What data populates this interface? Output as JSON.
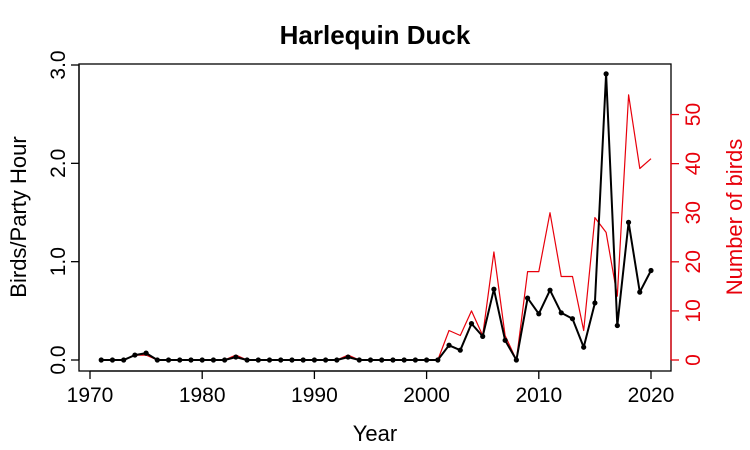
{
  "chart_data": {
    "type": "line",
    "title": "Harlequin Duck",
    "xlabel": "Year",
    "ylabel": "Birds/Party Hour",
    "ylabel_right": "Number of birds",
    "xlim": [
      1970,
      2020
    ],
    "ylim": [
      0,
      3.0
    ],
    "ylim_right": [
      0,
      55
    ],
    "x_ticks": [
      1970,
      1980,
      1990,
      2000,
      2010,
      2020
    ],
    "y_ticks": [
      "0.0",
      "1.0",
      "2.0",
      "3.0"
    ],
    "y_ticks_right": [
      "0",
      "10",
      "20",
      "30",
      "40",
      "50"
    ],
    "grid": false,
    "colors": {
      "left_series": "#000000",
      "right_series": "#e8000b"
    },
    "x": [
      1971,
      1972,
      1973,
      1974,
      1975,
      1976,
      1977,
      1978,
      1979,
      1980,
      1981,
      1982,
      1983,
      1984,
      1985,
      1986,
      1987,
      1988,
      1989,
      1990,
      1991,
      1992,
      1993,
      1994,
      1995,
      1996,
      1997,
      1998,
      1999,
      2000,
      2001,
      2002,
      2003,
      2004,
      2005,
      2006,
      2007,
      2008,
      2009,
      2010,
      2011,
      2012,
      2013,
      2014,
      2015,
      2016,
      2017,
      2018,
      2019,
      2020
    ],
    "series": [
      {
        "axis": "left",
        "markers": true,
        "values": [
          0,
          0,
          0,
          0.05,
          0.07,
          0,
          0,
          0,
          0,
          0,
          0,
          0,
          0.03,
          0,
          0,
          0,
          0,
          0,
          0,
          0,
          0,
          0,
          0.03,
          0,
          0,
          0,
          0,
          0,
          0,
          0,
          0,
          0.15,
          0.1,
          0.37,
          0.24,
          0.72,
          0.2,
          0,
          0.63,
          0.47,
          0.71,
          0.48,
          0.42,
          0.13,
          0.58,
          2.91,
          0.35,
          1.4,
          0.69,
          0.91
        ]
      },
      {
        "axis": "right",
        "markers": false,
        "values": [
          0,
          0,
          0,
          1,
          1,
          0,
          0,
          0,
          0,
          0,
          0,
          0,
          1,
          0,
          0,
          0,
          0,
          0,
          0,
          0,
          0,
          0,
          1,
          0,
          0,
          0,
          0,
          0,
          0,
          0,
          0,
          6,
          5,
          10,
          5,
          22,
          5,
          0,
          18,
          18,
          30,
          17,
          17,
          6,
          29,
          26,
          13,
          54,
          39,
          41
        ]
      }
    ]
  }
}
